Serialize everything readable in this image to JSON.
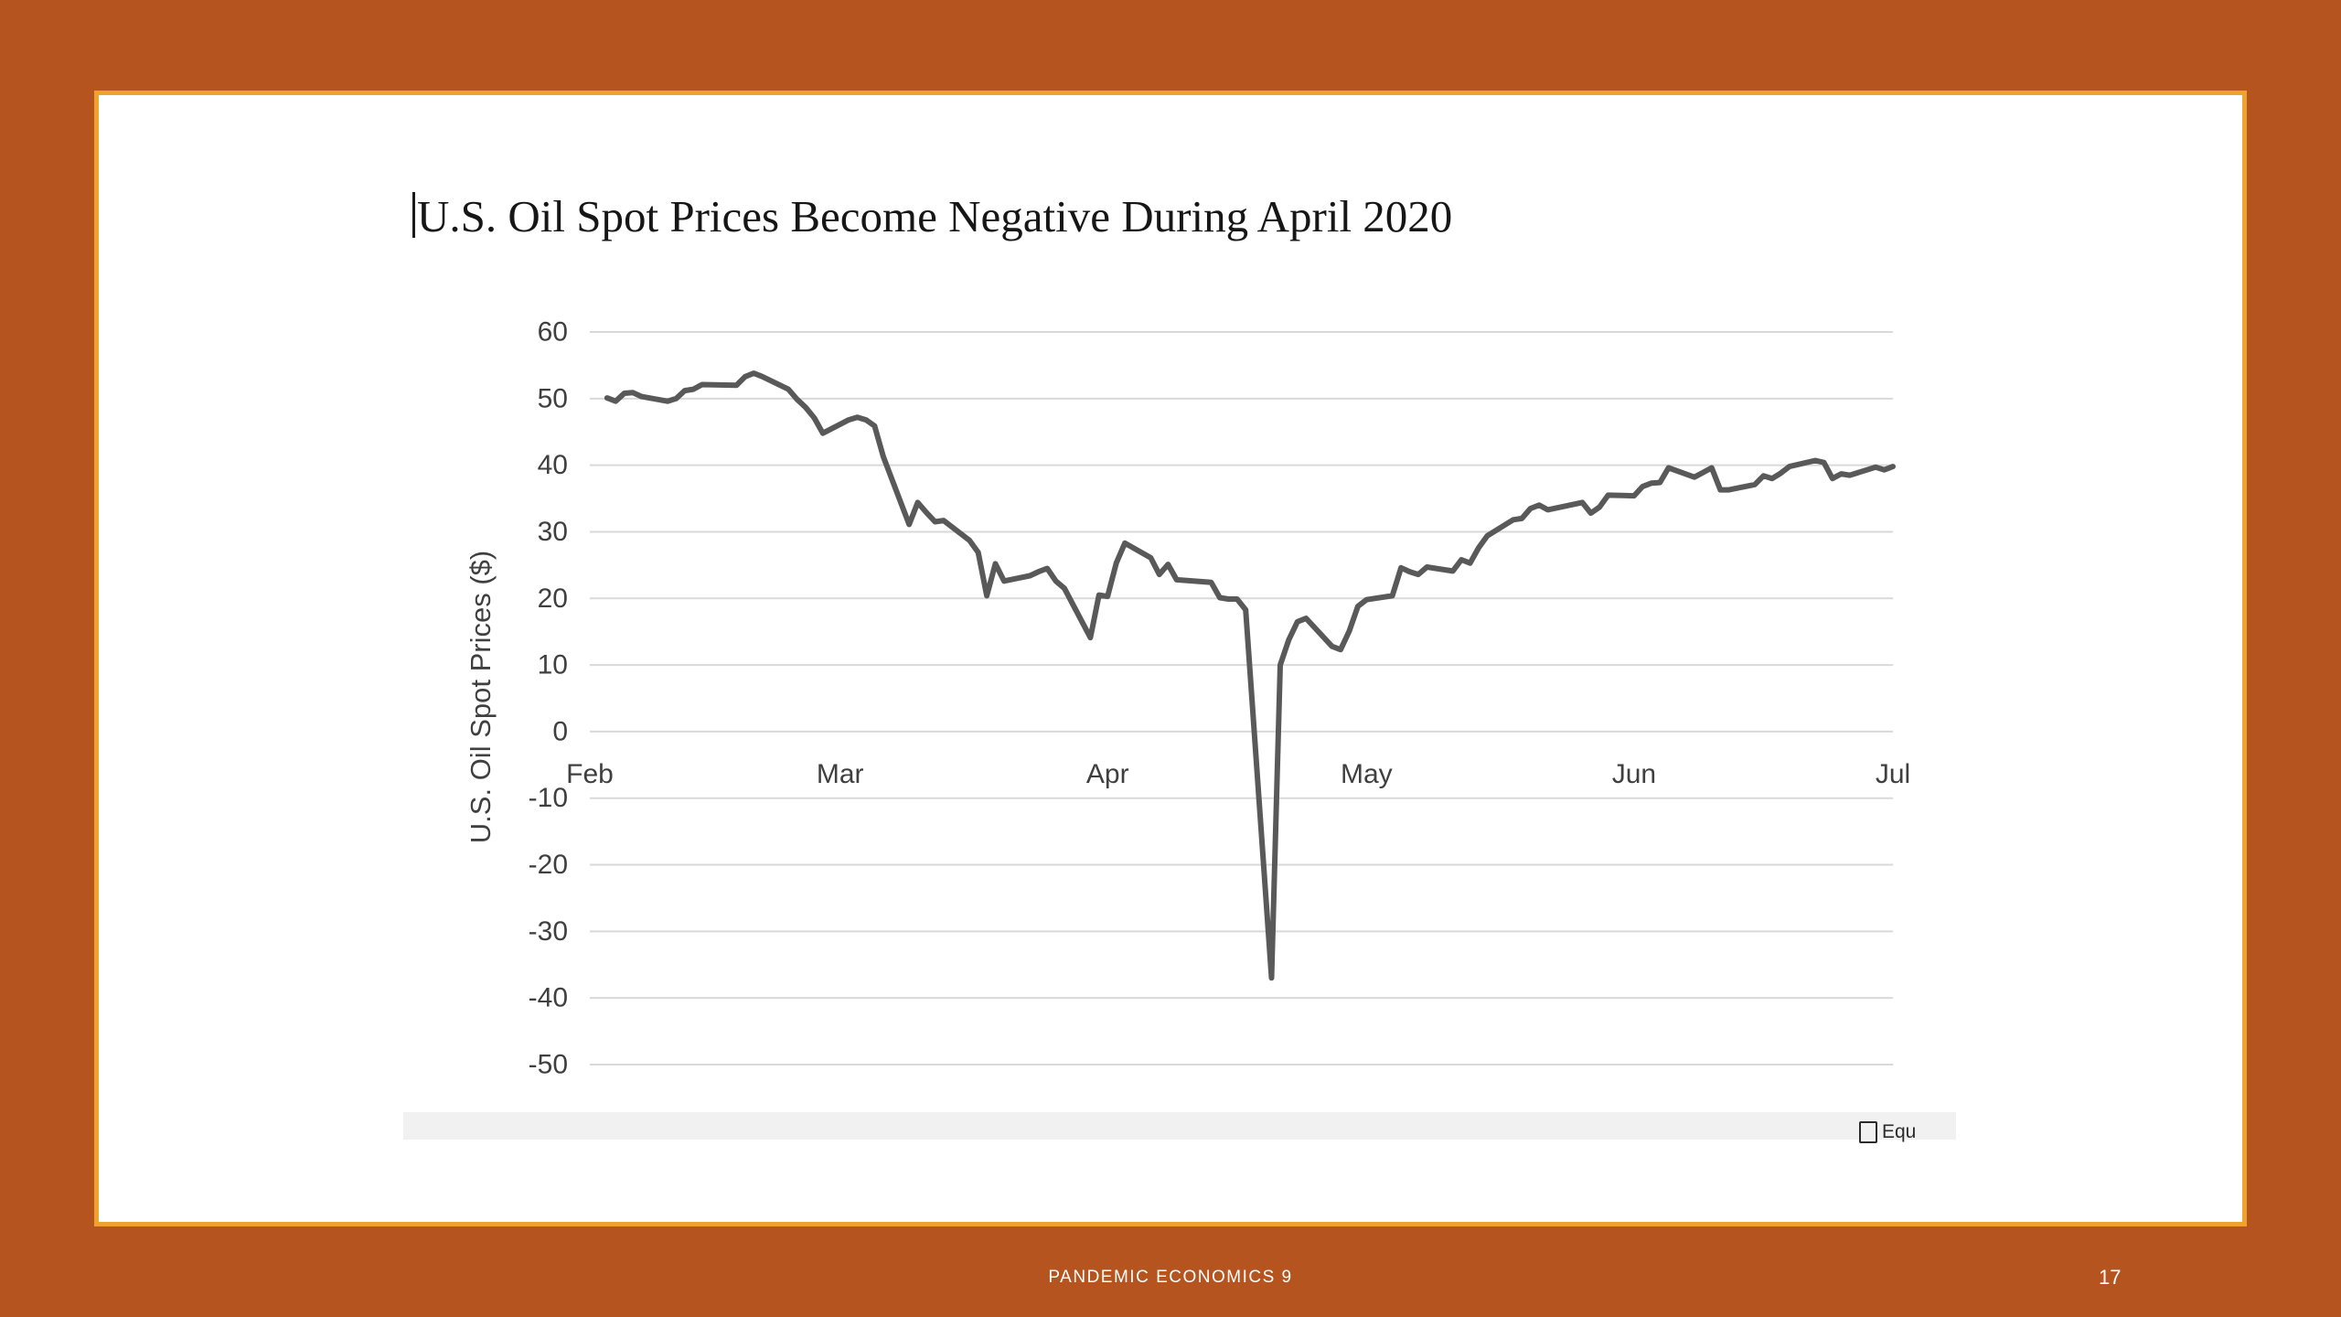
{
  "slide": {
    "title": "U.S. Oil Spot Prices Become Negative During April 2020",
    "footer": "PANDEMIC ECONOMICS 9",
    "page_number": "17",
    "source_note": "Equ"
  },
  "colors": {
    "frame": "#b5541f",
    "frame_inner_line": "#f0a22e",
    "slide_bg": "#ffffff",
    "series_line": "#595959",
    "gridline": "#d9d9d9",
    "tick_text": "#3f3f3f"
  },
  "chart_data": {
    "type": "line",
    "title": "",
    "xlabel": "",
    "ylabel": "U.S. Oil Spot Prices ($)",
    "ylim": [
      -50,
      60
    ],
    "y_ticks": [
      60,
      50,
      40,
      30,
      20,
      10,
      0,
      -10,
      -20,
      -30,
      -40,
      -50
    ],
    "x_ticks": [
      "Feb",
      "Mar",
      "Apr",
      "May",
      "Jun",
      "Jul"
    ],
    "x_tick_dates": [
      "2020-02-01",
      "2020-03-01",
      "2020-04-01",
      "2020-05-01",
      "2020-06-01",
      "2020-07-01"
    ],
    "grid": "horizontal",
    "legend": "none",
    "series": [
      {
        "name": "U.S. Oil Spot Prices",
        "color": "#595959",
        "dates": [
          "2020-02-03",
          "2020-02-04",
          "2020-02-05",
          "2020-02-06",
          "2020-02-07",
          "2020-02-10",
          "2020-02-11",
          "2020-02-12",
          "2020-02-13",
          "2020-02-14",
          "2020-02-18",
          "2020-02-19",
          "2020-02-20",
          "2020-02-21",
          "2020-02-24",
          "2020-02-25",
          "2020-02-26",
          "2020-02-27",
          "2020-02-28",
          "2020-03-02",
          "2020-03-03",
          "2020-03-04",
          "2020-03-05",
          "2020-03-06",
          "2020-03-09",
          "2020-03-10",
          "2020-03-11",
          "2020-03-12",
          "2020-03-13",
          "2020-03-16",
          "2020-03-17",
          "2020-03-18",
          "2020-03-19",
          "2020-03-20",
          "2020-03-23",
          "2020-03-24",
          "2020-03-25",
          "2020-03-26",
          "2020-03-27",
          "2020-03-30",
          "2020-03-31",
          "2020-04-01",
          "2020-04-02",
          "2020-04-03",
          "2020-04-06",
          "2020-04-07",
          "2020-04-08",
          "2020-04-09",
          "2020-04-13",
          "2020-04-14",
          "2020-04-15",
          "2020-04-16",
          "2020-04-17",
          "2020-04-20",
          "2020-04-21",
          "2020-04-22",
          "2020-04-23",
          "2020-04-24",
          "2020-04-27",
          "2020-04-28",
          "2020-04-29",
          "2020-04-30",
          "2020-05-01",
          "2020-05-04",
          "2020-05-05",
          "2020-05-06",
          "2020-05-07",
          "2020-05-08",
          "2020-05-11",
          "2020-05-12",
          "2020-05-13",
          "2020-05-14",
          "2020-05-15",
          "2020-05-18",
          "2020-05-19",
          "2020-05-20",
          "2020-05-21",
          "2020-05-22",
          "2020-05-26",
          "2020-05-27",
          "2020-05-28",
          "2020-05-29",
          "2020-06-01",
          "2020-06-02",
          "2020-06-03",
          "2020-06-04",
          "2020-06-05",
          "2020-06-08",
          "2020-06-09",
          "2020-06-10",
          "2020-06-11",
          "2020-06-12",
          "2020-06-15",
          "2020-06-16",
          "2020-06-17",
          "2020-06-18",
          "2020-06-19",
          "2020-06-22",
          "2020-06-23",
          "2020-06-24",
          "2020-06-25",
          "2020-06-26",
          "2020-06-29",
          "2020-06-30",
          "2020-07-01"
        ],
        "values": [
          50.1,
          49.6,
          50.8,
          50.9,
          50.3,
          49.6,
          50.0,
          51.2,
          51.4,
          52.1,
          52.0,
          53.3,
          53.8,
          53.3,
          51.4,
          49.9,
          48.7,
          47.1,
          44.8,
          46.8,
          47.2,
          46.8,
          45.9,
          41.3,
          31.1,
          34.4,
          32.9,
          31.5,
          31.7,
          28.7,
          26.9,
          20.4,
          25.2,
          22.6,
          23.4,
          24.0,
          24.5,
          22.6,
          21.5,
          14.1,
          20.5,
          20.3,
          25.3,
          28.3,
          26.1,
          23.6,
          25.1,
          22.8,
          22.4,
          20.1,
          19.9,
          19.9,
          18.3,
          -37.0,
          10.0,
          13.8,
          16.5,
          17.0,
          12.8,
          12.3,
          15.1,
          18.8,
          19.8,
          20.4,
          24.6,
          24.0,
          23.6,
          24.7,
          24.1,
          25.8,
          25.3,
          27.6,
          29.4,
          31.8,
          32.0,
          33.5,
          34.0,
          33.3,
          34.4,
          32.8,
          33.7,
          35.5,
          35.4,
          36.8,
          37.3,
          37.4,
          39.6,
          38.2,
          38.9,
          39.6,
          36.3,
          36.3,
          37.1,
          38.4,
          38.0,
          38.8,
          39.8,
          40.7,
          40.4,
          38.0,
          38.7,
          38.5,
          39.7,
          39.3,
          39.8
        ]
      }
    ]
  }
}
